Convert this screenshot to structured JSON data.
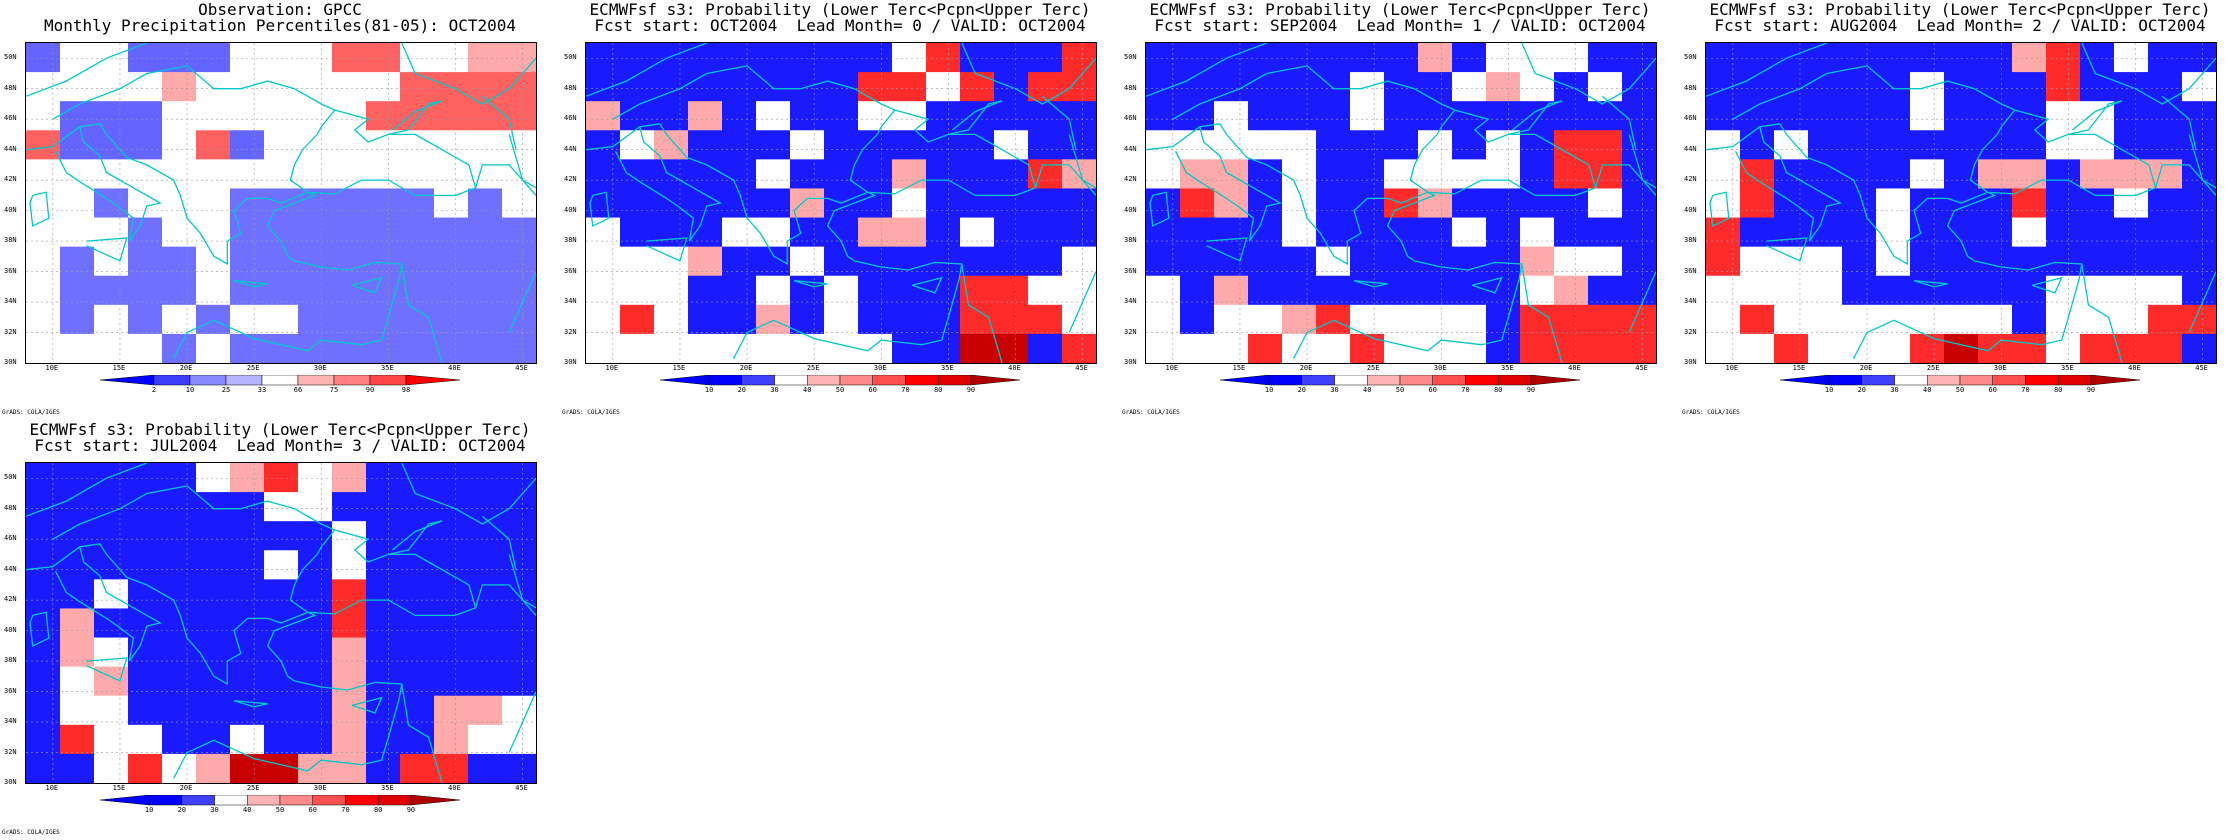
{
  "grades_credit": "GrADS: COLA/IGES",
  "lat_labels": [
    "50N",
    "48N",
    "46N",
    "44N",
    "42N",
    "40N",
    "38N",
    "36N",
    "34N",
    "32N",
    "30N"
  ],
  "lon_labels": [
    "10E",
    "15E",
    "20E",
    "25E",
    "30E",
    "35E",
    "40E",
    "45E"
  ],
  "scales": {
    "obs": {
      "labels": [
        "2",
        "10",
        "25",
        "33",
        "66",
        "75",
        "90",
        "98"
      ],
      "colors": [
        "#0000ff",
        "#3c3cff",
        "#8a8aff",
        "#b4b4ff",
        "#ffffff",
        "#ffb4b4",
        "#ff8080",
        "#ff4646",
        "#ff0000"
      ]
    },
    "prob": {
      "labels": [
        "10",
        "20",
        "30",
        "40",
        "50",
        "60",
        "70",
        "80",
        "90"
      ],
      "colors": [
        "#0000ff",
        "#0000ff",
        "#4040ff",
        "#ffffff",
        "#ffb4b4",
        "#ff8a8a",
        "#ff5050",
        "#ff0000",
        "#e00000",
        "#b00000"
      ]
    }
  },
  "panels": [
    {
      "title1": "Observation: GPCC",
      "title2": "Monthly Precipitation Percentiles(81-05): OCT2004",
      "scale": "obs",
      "grid": [
        "b.....ab.a....",
        "....p..........",
        "....q.....rrppp",
        ".qqqq....qqrqqq",
        "q...........p..",
        "..a..rr........",
        "..ba..bbbbrrbb.",
        ".b....bbbbbbb..",
        ".a.bb.bbbbbb...",
        ".....b..b...bb.",
        "aaaaaaaaaaaaaaa"
      ],
      "colors_note": "",
      "chart_data": {
        "type": "heatmap",
        "lon_range": [
          8,
          46
        ],
        "lat_range": [
          30,
          51
        ],
        "x": [
          "10E",
          "15E",
          "20E",
          "25E",
          "30E",
          "35E",
          "40E",
          "45E"
        ],
        "y": [
          "30N",
          "32N",
          "34N",
          "36N",
          "38N",
          "40N",
          "42N",
          "44N",
          "46N",
          "48N",
          "50N"
        ],
        "legend": [
          "2",
          "10",
          "25",
          "33",
          "66",
          "75",
          "90",
          "98"
        ]
      }
    },
    {
      "title1": "ECMWFsf s3: Probability (Lower Terc<Pcpn<Upper Terc)",
      "title2": "Fcst start: OCT2004  Lead Month= 0 / VALID: OCT2004",
      "scale": "prob",
      "chart_data": {
        "type": "heatmap",
        "lon_range": [
          8,
          46
        ],
        "lat_range": [
          30,
          51
        ],
        "legend": [
          "10",
          "20",
          "30",
          "40",
          "50",
          "60",
          "70",
          "80",
          "90"
        ]
      }
    },
    {
      "title1": "ECMWFsf s3: Probability (Lower Terc<Pcpn<Upper Terc)",
      "title2": "Fcst start: SEP2004  Lead Month= 1 / VALID: OCT2004",
      "scale": "prob",
      "chart_data": {
        "type": "heatmap",
        "lon_range": [
          8,
          46
        ],
        "lat_range": [
          30,
          51
        ],
        "legend": [
          "10",
          "20",
          "30",
          "40",
          "50",
          "60",
          "70",
          "80",
          "90"
        ]
      }
    },
    {
      "title1": "ECMWFsf s3: Probability (Lower Terc<Pcpn<Upper Terc)",
      "title2": "Fcst start: AUG2004  Lead Month= 2 / VALID: OCT2004",
      "scale": "prob",
      "chart_data": {
        "type": "heatmap",
        "lon_range": [
          8,
          46
        ],
        "lat_range": [
          30,
          51
        ],
        "legend": [
          "10",
          "20",
          "30",
          "40",
          "50",
          "60",
          "70",
          "80",
          "90"
        ]
      }
    },
    {
      "title1": "ECMWFsf s3: Probability (Lower Terc<Pcpn<Upper Terc)",
      "title2": "Fcst start: JUL2004  Lead Month= 3 / VALID: OCT2004",
      "scale": "prob",
      "chart_data": {
        "type": "heatmap",
        "lon_range": [
          8,
          46
        ],
        "lat_range": [
          30,
          51
        ],
        "legend": [
          "10",
          "20",
          "30",
          "40",
          "50",
          "60",
          "70",
          "80",
          "90"
        ]
      }
    }
  ],
  "cell_grids": [
    [
      "awwaaawwwrrwwpp",
      "wwwwpwwwwwwrrrr",
      "waaawwwwwwrrrrr",
      "raaawrawwwwwwww",
      "wwwwwwwwwwwwwww",
      "wwbwwwbbbbbbwbw",
      "wwwbwwbbbbbbbbb",
      "wbwbbwbbbbbbbbb",
      "wbbbbwbbbbbbbbb",
      "wbwbwbwwbbbbbbb",
      "wwwwbwbbbbbbbbb"
    ],
    [
      "BBBBBBBBBWRBBBR",
      "BBBBBBBBRRWRBRR",
      "PBBPBWBBWWBBBBB",
      "BWPBBBWBBBBBWBB",
      "BBBBBWBBBPBBBRP",
      "BBBBBBPBBWBBBBB",
      "WBBBWWBBPPBWBBB",
      "WWWPBBWBBBBBBBW",
      "WWWBBWBWBBBRRWW",
      "WRWBBPBWBBBRRRW",
      "WWWWWWWWWBBDDBR"
    ],
    [
      "BBBBBBBBPBWWWBB",
      "BBBBBBWBBWPWBWB",
      "BBWBBBWBBBBBBBB",
      "WWWWWBBBWBWBRRB",
      "WPPBWBBWWWWBRRB",
      "BRPBWBBRPBBBBWB",
      "BBBBWBBBBWBWBBB",
      "BBBBBWBBBBBPWWB",
      "WBPBBBBBBBBWPBB",
      "WBWWPRWWWWBRRRR",
      "WWWRWWRWWWBRRRR"
    ],
    [
      "BBBBBBBBBPRBWBB",
      "BBBBBBWBBBRBBBW",
      "BBBBBBWBBBWWBBB",
      "WBWBBBBBBBWWBBB",
      "WRBBBBWBPPBPPPB",
      "WRBBBWBBBRBBWBB",
      "RBBBBWBBBWBBBBB",
      "RWWWBWBBBBBBBBB",
      "WWWWBBBBBBWWWWB",
      "WRWWWWWWWBWWWRR",
      "WWRWWWRDRRWRRRB"
    ],
    [
      "BBBBBWPRWPBBBBB",
      "BBBBBBBWWBBBBBB",
      "BBBBBBBBBWBBBBB",
      "BBBBBBBWBWBBBBB",
      "BBWBBBBBBRBBBBB",
      "BPBBBBBBBRBBBBB",
      "BPWBBBBBBPBBBBB",
      "BWPBBBBBBPBBBBB",
      "BWWBBBBBBPBBPPW",
      "BRWWBBWBBPBBPWW",
      "BBWRWPDDPPBRRBB"
    ]
  ],
  "cell_legend": {
    "a": "#6464ff",
    "b": "#7070ff",
    "w": "#ffffff",
    "r": "#ff6060",
    "p": "#ffaaaa",
    "B": "#1a1aff",
    "W": "#ffffff",
    "P": "#ffaaaa",
    "R": "#ff2a2a",
    "D": "#c80000"
  }
}
